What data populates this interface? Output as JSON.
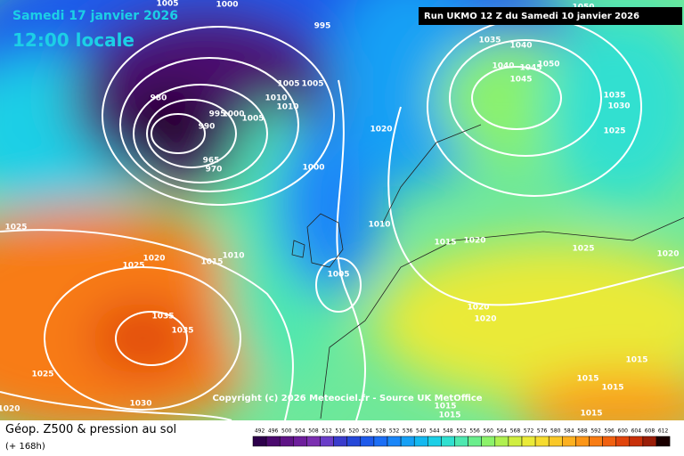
{
  "header": {
    "date": "Samedi 17 janvier 2026",
    "time": "12:00 locale",
    "run": "Run UKMO 12 Z du Samedi 10 janvier 2026"
  },
  "copyright": "Copyright (c) 2026 Meteociel.fr - Source UK MetOffice",
  "footer": {
    "title": "Géop. Z500 & pression au sol",
    "lead": "(+ 168h)"
  },
  "isobar_labels": [
    "1005",
    "1000",
    "995",
    "980",
    "1005",
    "1005",
    "1010",
    "1010",
    "1005",
    "1000",
    "995",
    "990",
    "965",
    "970",
    "1000",
    "1020",
    "1010",
    "1015",
    "1020",
    "1025",
    "1020",
    "1005",
    "1020",
    "1020",
    "1025",
    "1025",
    "1020",
    "1015",
    "1010",
    "1035",
    "1035",
    "1025",
    "1030",
    "1020",
    "1015",
    "1015",
    "1015",
    "1015",
    "1015",
    "1015",
    "1035",
    "1040",
    "1040",
    "1045",
    "1050",
    "1045",
    "1035",
    "1030",
    "1025",
    "1050"
  ],
  "legend": {
    "values": [
      492,
      496,
      500,
      504,
      508,
      512,
      516,
      520,
      524,
      528,
      532,
      536,
      540,
      544,
      548,
      552,
      556,
      560,
      564,
      568,
      572,
      576,
      580,
      584,
      588,
      592,
      596,
      600,
      604,
      608,
      612
    ],
    "colors": [
      "#2d004b",
      "#4b0a6e",
      "#5f1486",
      "#6e1e9c",
      "#7b2fb0",
      "#6a3dc8",
      "#3a3ccc",
      "#2648d8",
      "#1e5aea",
      "#1c6ef5",
      "#1a86f8",
      "#16a0f5",
      "#14b8f0",
      "#1ccfe6",
      "#30e0d0",
      "#4ee8b0",
      "#6aee8c",
      "#8cf26a",
      "#b0f050",
      "#d0ee40",
      "#eaea38",
      "#f6dc30",
      "#fac828",
      "#fcb020",
      "#fc9618",
      "#f87c14",
      "#f06010",
      "#e0440c",
      "#c8300a",
      "#9a1e08",
      "#1a0000"
    ]
  }
}
